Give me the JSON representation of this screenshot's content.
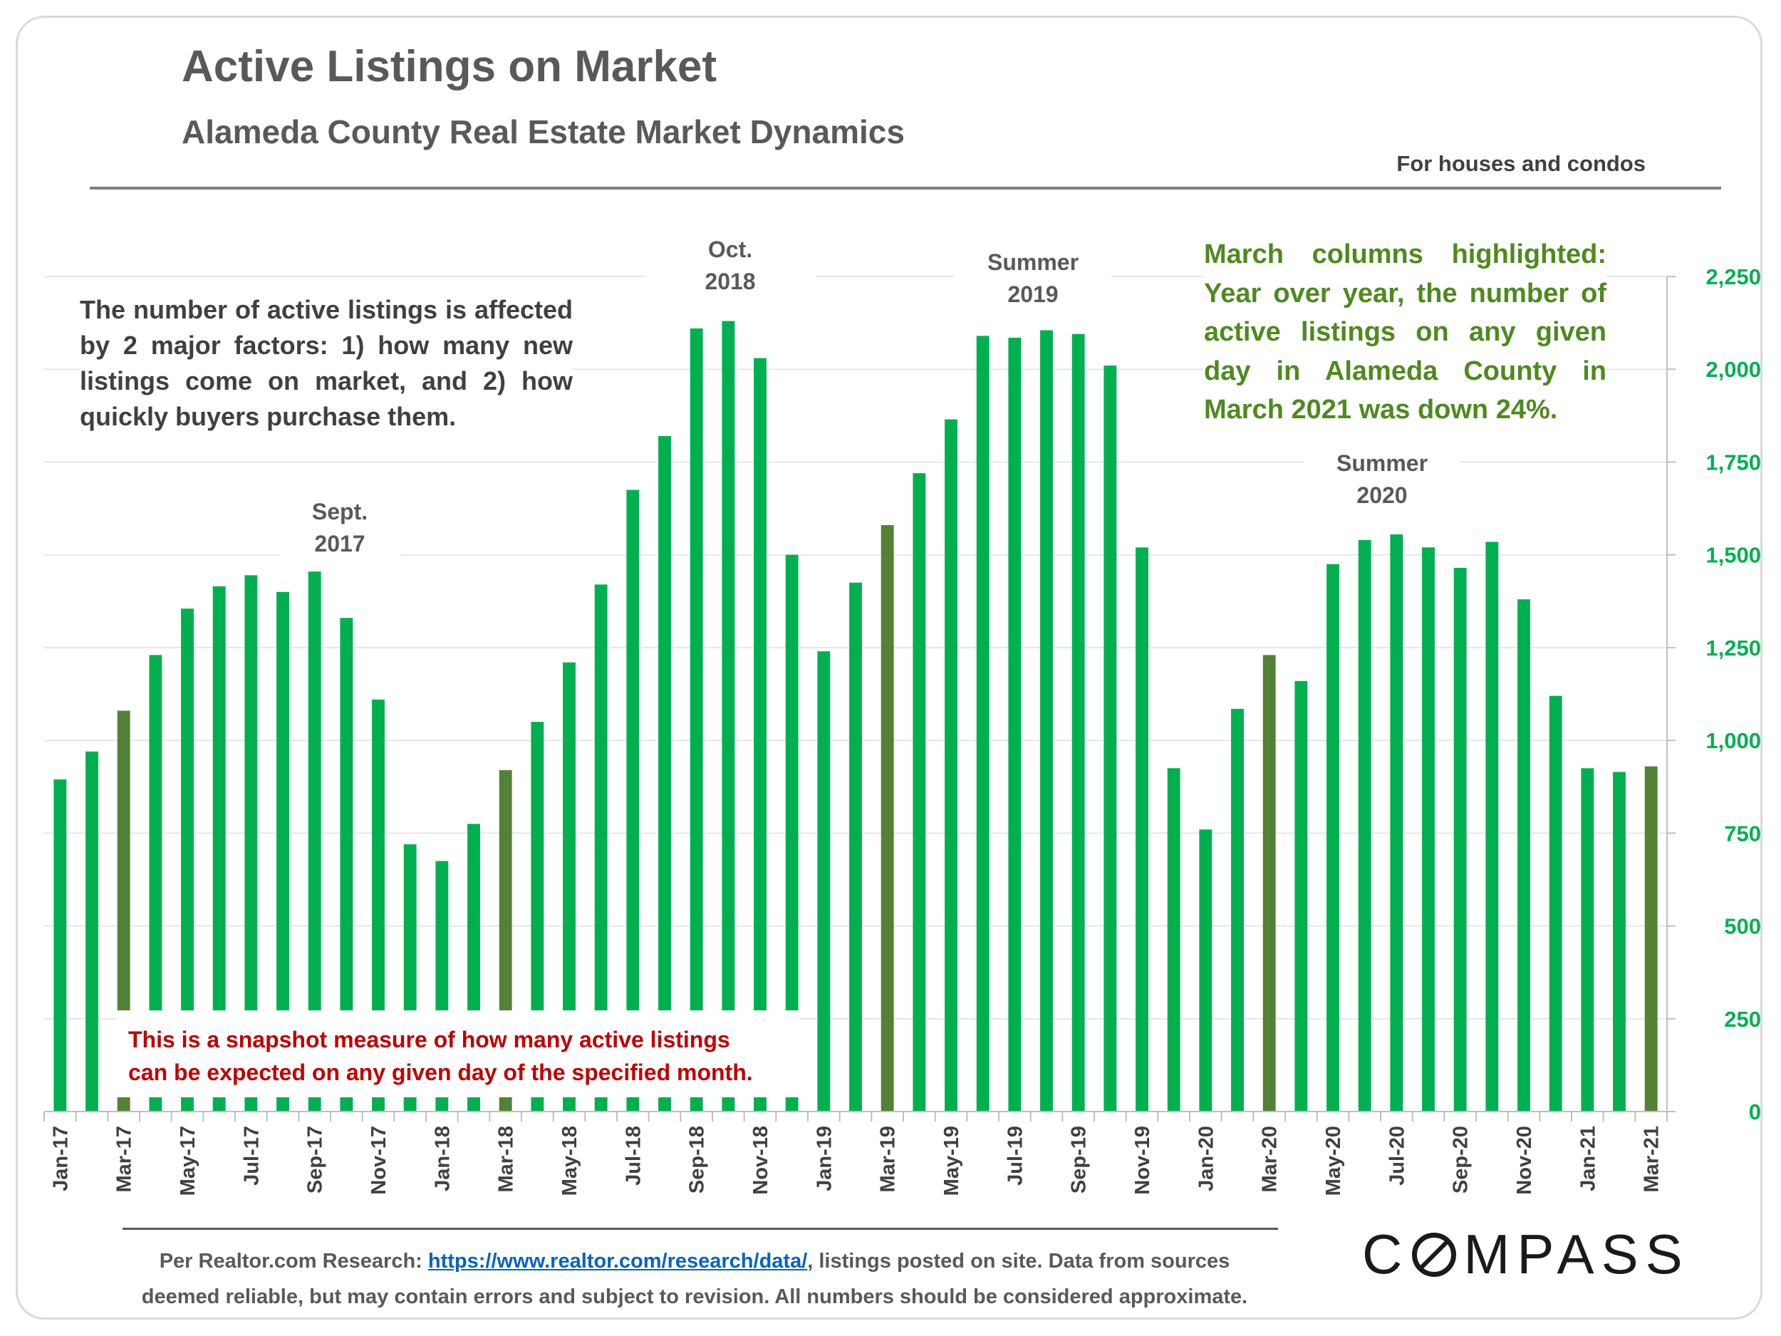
{
  "header": {
    "title": "Active Listings on Market",
    "subtitle": "Alameda County Real Estate Market Dynamics",
    "note": "For houses and condos"
  },
  "annotations": {
    "factors": "The number of active listings is affected by 2 major factors: 1) how many new listings come on market, and 2) how quickly buyers purchase them.",
    "march_highlight": "March columns highlighted: Year over year, the number of active listings on any given day in Alameda County in March 2021 was down 24%.",
    "snapshot_line1": "This is a snapshot measure of how many active listings",
    "snapshot_line2": "can be expected on any given day of the specified month.",
    "sept2017_line1": "Sept.",
    "sept2017_line2": "2017",
    "oct2018_line1": "Oct.",
    "oct2018_line2": "2018",
    "summer2019_line1": "Summer",
    "summer2019_line2": "2019",
    "summer2020_line1": "Summer",
    "summer2020_line2": "2020"
  },
  "footer": {
    "source_prefix": "Per Realtor.com Research:",
    "source_link": "https://www.realtor.com/research/data/",
    "source_suffix": ", listings posted on site. Data from sources",
    "source_line2": "deemed reliable, but may contain errors and subject to revision. All numbers should be considered approximate.",
    "logo_pre": "C",
    "logo_post": "MPASS"
  },
  "colors": {
    "bar": "#00b050",
    "march_bar": "#538135",
    "axis_label": "#00b050",
    "grid": "#e6e6e6"
  },
  "chart_data": {
    "type": "bar",
    "title": "Active Listings on Market",
    "xlabel": "",
    "ylabel": "",
    "ylim": [
      0,
      2250
    ],
    "yticks": [
      0,
      250,
      500,
      750,
      1000,
      1250,
      1500,
      1750,
      2000,
      2250
    ],
    "ytick_labels": [
      "0",
      "250",
      "500",
      "750",
      "1,000",
      "1,250",
      "1,500",
      "1,750",
      "2,000",
      "2,250"
    ],
    "y_axis_position": "right",
    "categories": [
      "Jan-17",
      "Feb-17",
      "Mar-17",
      "Apr-17",
      "May-17",
      "Jun-17",
      "Jul-17",
      "Aug-17",
      "Sep-17",
      "Oct-17",
      "Nov-17",
      "Dec-17",
      "Jan-18",
      "Feb-18",
      "Mar-18",
      "Apr-18",
      "May-18",
      "Jun-18",
      "Jul-18",
      "Aug-18",
      "Sep-18",
      "Oct-18",
      "Nov-18",
      "Dec-18",
      "Jan-19",
      "Feb-19",
      "Mar-19",
      "Apr-19",
      "May-19",
      "Jun-19",
      "Jul-19",
      "Aug-19",
      "Sep-19",
      "Oct-19",
      "Nov-19",
      "Dec-19",
      "Jan-20",
      "Feb-20",
      "Mar-20",
      "Apr-20",
      "May-20",
      "Jun-20",
      "Jul-20",
      "Aug-20",
      "Sep-20",
      "Oct-20",
      "Nov-20",
      "Dec-20",
      "Jan-21",
      "Feb-21",
      "Mar-21"
    ],
    "x_tick_labels": [
      "Jan-17",
      "Mar-17",
      "May-17",
      "Jul-17",
      "Sep-17",
      "Nov-17",
      "Jan-18",
      "Mar-18",
      "May-18",
      "Jul-18",
      "Sep-18",
      "Nov-18",
      "Jan-19",
      "Mar-19",
      "May-19",
      "Jul-19",
      "Sep-19",
      "Nov-19",
      "Jan-20",
      "Mar-20",
      "May-20",
      "Jul-20",
      "Sep-20",
      "Nov-20",
      "Jan-21",
      "Mar-21"
    ],
    "values": [
      895,
      970,
      1080,
      1230,
      1355,
      1415,
      1445,
      1400,
      1455,
      1330,
      1110,
      720,
      675,
      775,
      920,
      1050,
      1210,
      1420,
      1675,
      1820,
      2110,
      2130,
      2030,
      1500,
      1240,
      1425,
      1580,
      1720,
      1865,
      2090,
      2085,
      2105,
      2095,
      2010,
      1520,
      925,
      760,
      1085,
      1230,
      1160,
      1475,
      1540,
      1555,
      1520,
      1465,
      1535,
      1380,
      1120,
      925,
      915,
      930
    ],
    "highlighted": [
      "Mar-17",
      "Mar-18",
      "Mar-19",
      "Mar-20",
      "Mar-21"
    ],
    "legend": "none",
    "grid": true
  }
}
